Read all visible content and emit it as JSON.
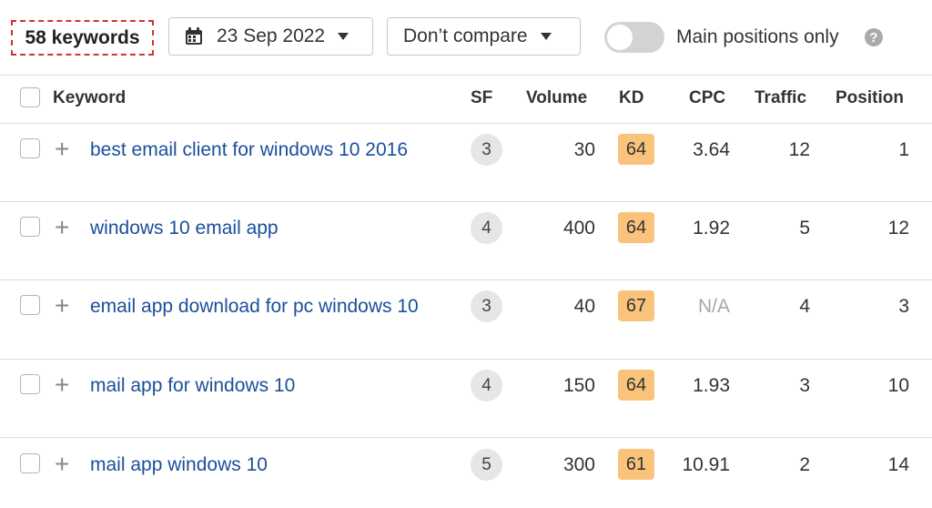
{
  "toolbar": {
    "keyword_count": "58 keywords",
    "date": "23 Sep 2022",
    "compare": "Don’t compare",
    "toggle_label": "Main positions only",
    "help": "?"
  },
  "columns": {
    "keyword": "Keyword",
    "sf": "SF",
    "volume": "Volume",
    "kd": "KD",
    "cpc": "CPC",
    "traffic": "Traffic",
    "position": "Position"
  },
  "rows": [
    {
      "keyword": "best email client for windows 10 2016",
      "sf": "3",
      "volume": "30",
      "kd": "64",
      "cpc": "3.64",
      "traffic": "12",
      "position": "1"
    },
    {
      "keyword": "windows 10 email app",
      "sf": "4",
      "volume": "400",
      "kd": "64",
      "cpc": "1.92",
      "traffic": "5",
      "position": "12"
    },
    {
      "keyword": "email app download for pc windows 10",
      "sf": "3",
      "volume": "40",
      "kd": "67",
      "cpc": "N/A",
      "traffic": "4",
      "position": "3"
    },
    {
      "keyword": "mail app for windows 10",
      "sf": "4",
      "volume": "150",
      "kd": "64",
      "cpc": "1.93",
      "traffic": "3",
      "position": "10"
    },
    {
      "keyword": "mail app windows 10",
      "sf": "5",
      "volume": "300",
      "kd": "61",
      "cpc": "10.91",
      "traffic": "2",
      "position": "14"
    }
  ],
  "icons": {
    "calendar": "calendar-icon",
    "caret": "caret-down-icon",
    "expand": "plus-icon",
    "help": "help-icon"
  },
  "colors": {
    "link": "#1b4f9b",
    "kd_badge": "#f9c37b",
    "highlight_border": "#d0312d",
    "toggle_off": "#d3d3d3"
  }
}
